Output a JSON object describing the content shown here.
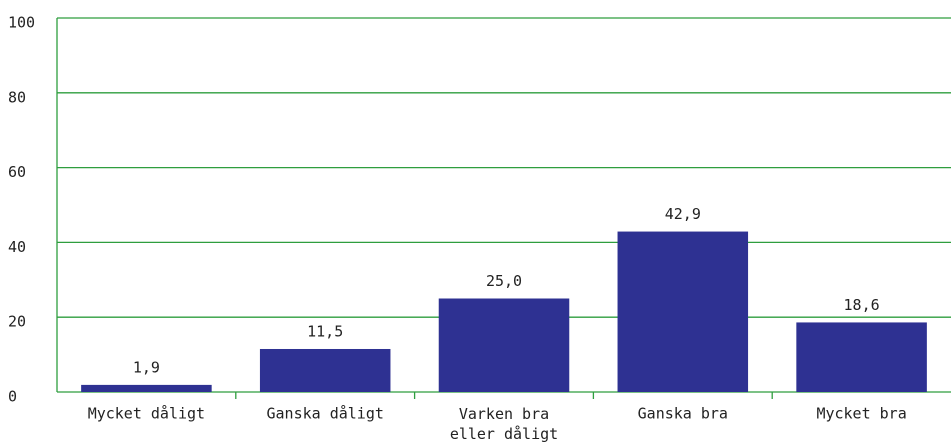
{
  "chart_data": {
    "type": "bar",
    "categories": [
      "Mycket dåligt",
      "Ganska dåligt",
      "Varken bra\neller dåligt",
      "Ganska bra",
      "Mycket bra"
    ],
    "values": [
      1.9,
      11.5,
      25.0,
      42.9,
      18.6
    ],
    "value_labels": [
      "1,9",
      "11,5",
      "25,0",
      "42,9",
      "18,6"
    ],
    "color": "#2e3192",
    "ylim": [
      0,
      100
    ],
    "yticks": [
      0,
      20,
      40,
      60,
      80,
      100
    ],
    "grid": true
  }
}
